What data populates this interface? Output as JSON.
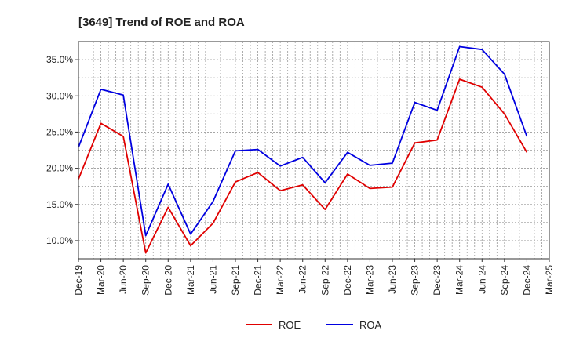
{
  "chart_data": {
    "type": "line",
    "title": "[3649]  Trend of ROE and ROA",
    "xlabel": "",
    "ylabel": "",
    "categories": [
      "Dec-19",
      "Mar-20",
      "Jun-20",
      "Sep-20",
      "Dec-20",
      "Mar-21",
      "Jun-21",
      "Sep-21",
      "Dec-21",
      "Mar-22",
      "Jun-22",
      "Sep-22",
      "Dec-22",
      "Mar-23",
      "Jun-23",
      "Sep-23",
      "Dec-23",
      "Mar-24",
      "Jun-24",
      "Sep-24",
      "Dec-24",
      "Mar-25"
    ],
    "y_ticks": [
      "10.0%",
      "15.0%",
      "20.0%",
      "25.0%",
      "30.0%",
      "35.0%"
    ],
    "y_tick_values": [
      10,
      15,
      20,
      25,
      30,
      35
    ],
    "ylim": [
      7.5,
      37.5
    ],
    "grid": true,
    "legend_position": "bottom",
    "series": [
      {
        "name": "ROE",
        "color": "#e00000",
        "values": [
          18.5,
          26.2,
          24.4,
          8.3,
          14.6,
          9.3,
          12.4,
          18.1,
          19.4,
          16.9,
          17.7,
          14.3,
          19.2,
          17.2,
          17.4,
          23.5,
          23.9,
          32.3,
          31.2,
          27.5,
          22.2,
          null
        ]
      },
      {
        "name": "ROA",
        "color": "#0000e0",
        "values": [
          22.9,
          30.9,
          30.1,
          10.7,
          17.8,
          10.9,
          15.4,
          22.4,
          22.6,
          20.3,
          21.5,
          18.0,
          22.2,
          20.4,
          20.7,
          29.1,
          28.0,
          36.8,
          36.4,
          33.0,
          24.4,
          null
        ]
      }
    ]
  }
}
